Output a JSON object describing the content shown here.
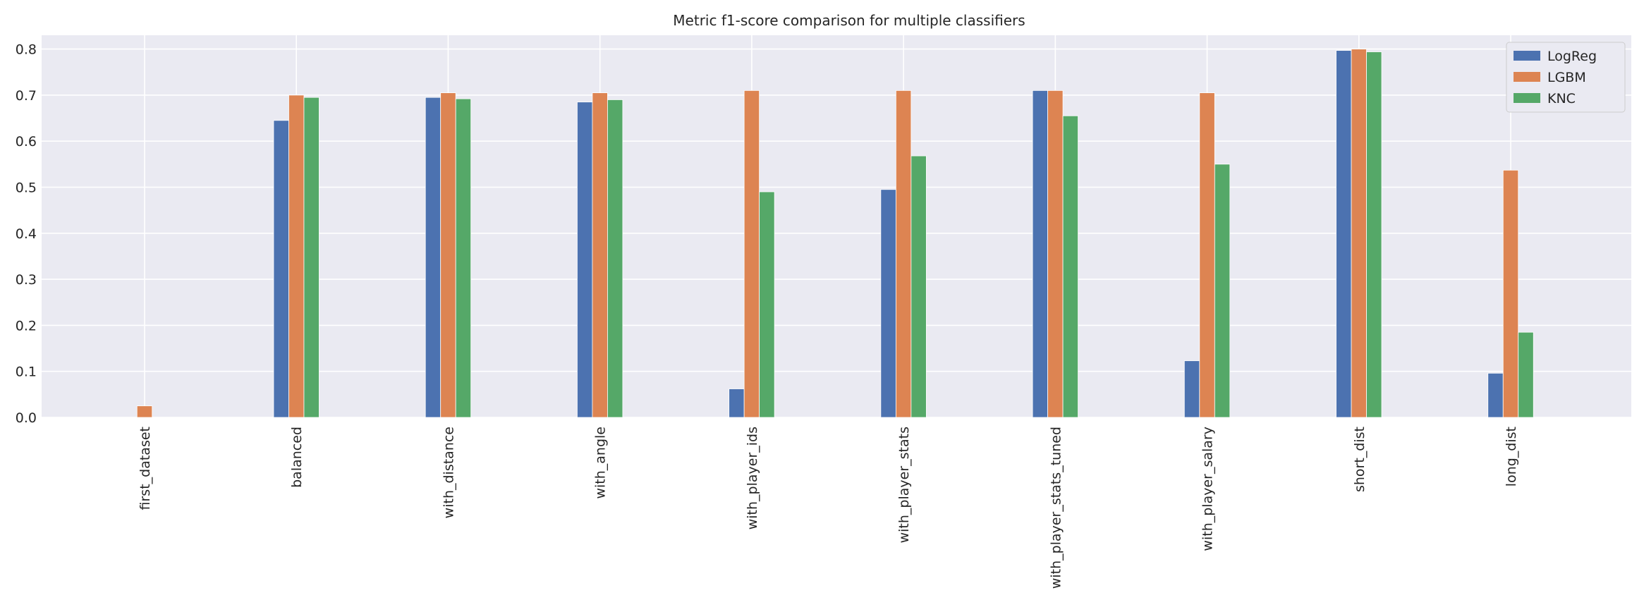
{
  "chart_data": {
    "type": "bar",
    "title": "Metric f1-score comparison for multiple classifiers",
    "xlabel": "",
    "ylabel": "",
    "ylim": [
      0,
      0.83
    ],
    "yticks": [
      "0.0",
      "0.1",
      "0.2",
      "0.3",
      "0.4",
      "0.5",
      "0.6",
      "0.7",
      "0.8"
    ],
    "grid": true,
    "legend_position": "top-right",
    "categories": [
      "first_dataset",
      "balanced",
      "with_distance",
      "with_angle",
      "with_player_ids",
      "with_player_stats",
      "with_player_stats_tuned",
      "with_player_salary",
      "short_dist",
      "long_dist"
    ],
    "series": [
      {
        "name": "LogReg",
        "color": "#4c72b0",
        "values": [
          0.0,
          0.645,
          0.695,
          0.685,
          0.062,
          0.495,
          0.71,
          0.123,
          0.797,
          0.096
        ]
      },
      {
        "name": "LGBM",
        "color": "#dd8452",
        "values": [
          0.025,
          0.7,
          0.705,
          0.705,
          0.71,
          0.71,
          0.71,
          0.705,
          0.8,
          0.537
        ]
      },
      {
        "name": "KNC",
        "color": "#55a868",
        "values": [
          0.0,
          0.695,
          0.692,
          0.69,
          0.49,
          0.568,
          0.655,
          0.55,
          0.794,
          0.185
        ]
      }
    ]
  }
}
